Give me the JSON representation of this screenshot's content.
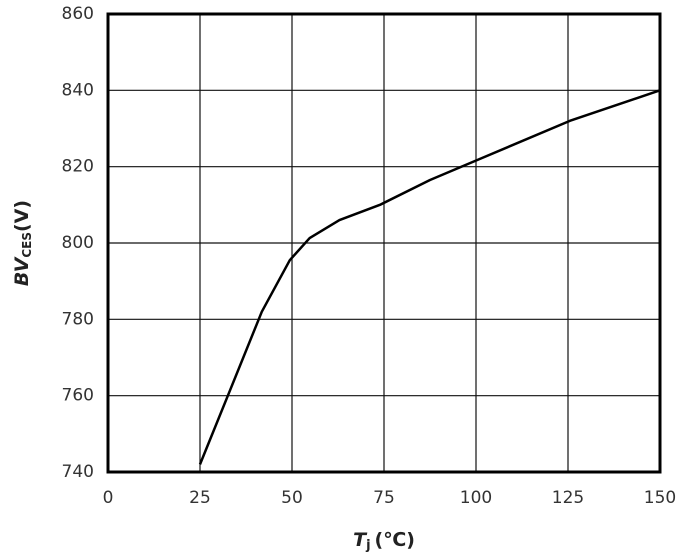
{
  "chart_data": {
    "type": "line",
    "x": [
      25,
      33.2,
      41.8,
      49.4,
      54.8,
      62.9,
      73.9,
      87.5,
      101,
      125.5,
      150
    ],
    "series": [
      {
        "color": "#000000",
        "values": [
          742,
          761.5,
          782,
          795.5,
          801.3,
          806,
          810,
          816.5,
          822,
          832,
          840
        ]
      }
    ],
    "xlim": [
      0,
      150
    ],
    "xticks": [
      0,
      25,
      50,
      75,
      100,
      125,
      150
    ],
    "ylim": [
      740,
      860
    ],
    "yticks": [
      740,
      760,
      780,
      800,
      820,
      840,
      860
    ],
    "grid": true,
    "xlabel": {
      "main": "T",
      "sub": "j",
      "unit": "(℃)"
    },
    "ylabel": {
      "main": "BV",
      "sub": "CES",
      "unit": "(V)"
    }
  }
}
